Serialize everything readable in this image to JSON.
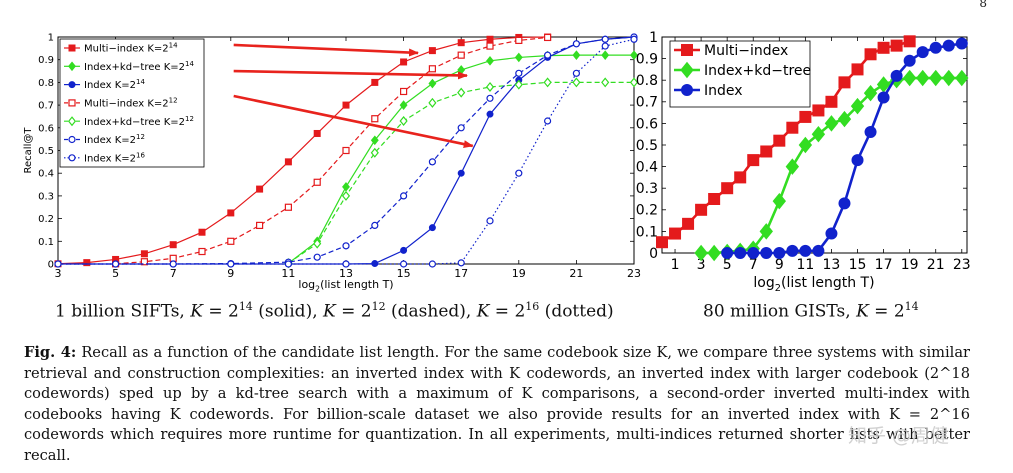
{
  "page_number": "8",
  "chart_data": [
    {
      "type": "line",
      "title": "",
      "xlabel": "log2(list length T)",
      "ylabel": "Recall@T",
      "xlim": [
        3,
        23
      ],
      "ylim": [
        0,
        1
      ],
      "xticks": [
        "3",
        "5",
        "7",
        "9",
        "11",
        "13",
        "15",
        "17",
        "19",
        "21",
        "23"
      ],
      "yticks": [
        "0",
        "0.1",
        "0.2",
        "0.3",
        "0.4",
        "0.5",
        "0.6",
        "0.7",
        "0.8",
        "0.9",
        "1"
      ],
      "legend_position": "top-left",
      "legend": [
        {
          "pre": "Multi−index K=2",
          "sup": "14"
        },
        {
          "pre": "Index+kd−tree K=2",
          "sup": "14"
        },
        {
          "pre": "Index K=2",
          "sup": "14"
        },
        {
          "pre": "Multi−index K=2",
          "sup": "12"
        },
        {
          "pre": "Index+kd−tree K=2",
          "sup": "12"
        },
        {
          "pre": "Index K=2",
          "sup": "12"
        },
        {
          "pre": "Index K=2",
          "sup": "16"
        }
      ],
      "series": [
        {
          "name": "Multi-index K=2^14",
          "color": "#e41a1c",
          "dash": "solid",
          "marker": "square",
          "filled": true,
          "x": [
            3,
            4,
            5,
            6,
            7,
            8,
            9,
            10,
            11,
            12,
            13,
            14,
            15,
            16,
            17,
            18,
            19,
            20
          ],
          "y": [
            0.001,
            0.006,
            0.02,
            0.045,
            0.085,
            0.14,
            0.225,
            0.33,
            0.45,
            0.575,
            0.7,
            0.8,
            0.89,
            0.94,
            0.975,
            0.99,
            0.998,
            1.0
          ]
        },
        {
          "name": "Index+kd-tree K=2^14",
          "color": "#33dd22",
          "dash": "solid",
          "marker": "diamond",
          "filled": true,
          "x": [
            11,
            12,
            13,
            14,
            15,
            16,
            17,
            18,
            19,
            20,
            21,
            22,
            23
          ],
          "y": [
            0.003,
            0.1,
            0.34,
            0.545,
            0.7,
            0.795,
            0.855,
            0.895,
            0.91,
            0.918,
            0.92,
            0.92,
            0.92
          ]
        },
        {
          "name": "Index K=2^14",
          "color": "#1122cc",
          "dash": "solid",
          "marker": "circle",
          "filled": true,
          "x": [
            3,
            5,
            7,
            9,
            11,
            13,
            14,
            15,
            16,
            17,
            18,
            19,
            20,
            21,
            22,
            23
          ],
          "y": [
            0,
            0,
            0,
            0,
            0,
            0,
            0.002,
            0.06,
            0.16,
            0.4,
            0.66,
            0.81,
            0.91,
            0.97,
            0.99,
            1.0
          ]
        },
        {
          "name": "Multi-index K=2^12",
          "color": "#e41a1c",
          "dash": "dashed",
          "marker": "square",
          "filled": false,
          "x": [
            5,
            6,
            7,
            8,
            9,
            10,
            11,
            12,
            13,
            14,
            15,
            16,
            17,
            18,
            19,
            20
          ],
          "y": [
            0.001,
            0.01,
            0.025,
            0.055,
            0.1,
            0.17,
            0.25,
            0.36,
            0.5,
            0.64,
            0.76,
            0.86,
            0.92,
            0.96,
            0.985,
            0.998
          ]
        },
        {
          "name": "Index+kd-tree K=2^12",
          "color": "#33dd22",
          "dash": "dashed",
          "marker": "diamond",
          "filled": false,
          "x": [
            11,
            12,
            13,
            14,
            15,
            16,
            17,
            18,
            19,
            20,
            21,
            22,
            23
          ],
          "y": [
            0.004,
            0.09,
            0.3,
            0.49,
            0.63,
            0.71,
            0.755,
            0.78,
            0.79,
            0.8,
            0.8,
            0.8,
            0.8
          ]
        },
        {
          "name": "Index K=2^12",
          "color": "#1122cc",
          "dash": "dashed",
          "marker": "circle",
          "filled": false,
          "x": [
            3,
            5,
            7,
            9,
            11,
            12,
            13,
            14,
            15,
            16,
            17,
            18,
            19,
            20,
            21,
            22,
            23
          ],
          "y": [
            0,
            0,
            0,
            0.002,
            0.008,
            0.03,
            0.08,
            0.17,
            0.3,
            0.45,
            0.6,
            0.73,
            0.84,
            0.92,
            0.97,
            0.99,
            1.0
          ]
        },
        {
          "name": "Index K=2^16",
          "color": "#1122cc",
          "dash": "dotted",
          "marker": "circle",
          "filled": false,
          "x": [
            3,
            5,
            7,
            9,
            11,
            13,
            15,
            16,
            17,
            18,
            19,
            20,
            21,
            22,
            23
          ],
          "y": [
            0,
            0,
            0,
            0,
            0,
            0,
            0,
            0,
            0.005,
            0.19,
            0.4,
            0.63,
            0.84,
            0.96,
            0.99
          ]
        }
      ],
      "annotations": [
        {
          "type": "arrow",
          "color": "#e8231d",
          "from": [
            9.1,
            0.965
          ],
          "to": [
            15.5,
            0.93
          ]
        },
        {
          "type": "arrow",
          "color": "#e8231d",
          "from": [
            9.1,
            0.85
          ],
          "to": [
            17.2,
            0.83
          ]
        },
        {
          "type": "arrow",
          "color": "#e8231d",
          "from": [
            9.1,
            0.74
          ],
          "to": [
            17.4,
            0.52
          ]
        }
      ]
    },
    {
      "type": "line",
      "title": "",
      "xlabel": "log2(list length T)",
      "ylabel": "",
      "xlim": [
        0,
        23.4
      ],
      "ylim": [
        0,
        1
      ],
      "xticks": [
        "1",
        "3",
        "5",
        "7",
        "9",
        "11",
        "13",
        "15",
        "17",
        "19",
        "21",
        "23"
      ],
      "yticks": [
        "0",
        "0.1",
        "0.2",
        "0.3",
        "0.4",
        "0.5",
        "0.6",
        "0.7",
        "0.8",
        "0.9",
        "1"
      ],
      "legend_position": "top-left",
      "legend": [
        {
          "pre": "Multi−index",
          "sup": ""
        },
        {
          "pre": "Index+kd−tree",
          "sup": ""
        },
        {
          "pre": "Index",
          "sup": ""
        }
      ],
      "series": [
        {
          "name": "Multi-index",
          "color": "#e41a1c",
          "marker": "square",
          "filled": true,
          "x": [
            0,
            1,
            2,
            3,
            4,
            5,
            6,
            7,
            8,
            9,
            10,
            11,
            12,
            13,
            14,
            15,
            16,
            17,
            18,
            19
          ],
          "y": [
            0.05,
            0.09,
            0.135,
            0.2,
            0.25,
            0.3,
            0.35,
            0.43,
            0.47,
            0.52,
            0.58,
            0.63,
            0.66,
            0.7,
            0.79,
            0.85,
            0.92,
            0.95,
            0.96,
            0.98
          ]
        },
        {
          "name": "Index+kd-tree",
          "color": "#33dd22",
          "marker": "diamond",
          "filled": true,
          "x": [
            3,
            4,
            5,
            6,
            7,
            8,
            9,
            10,
            11,
            12,
            13,
            14,
            15,
            16,
            17,
            18,
            19,
            20,
            21,
            22,
            23
          ],
          "y": [
            0.0,
            0.0,
            0.005,
            0.01,
            0.02,
            0.1,
            0.24,
            0.4,
            0.5,
            0.55,
            0.6,
            0.62,
            0.68,
            0.74,
            0.78,
            0.8,
            0.81,
            0.81,
            0.81,
            0.81,
            0.81
          ]
        },
        {
          "name": "Index",
          "color": "#1122cc",
          "marker": "circle",
          "filled": true,
          "x": [
            5,
            6,
            7,
            8,
            9,
            10,
            11,
            12,
            13,
            14,
            15,
            16,
            17,
            18,
            19,
            20,
            21,
            22,
            23
          ],
          "y": [
            0.0,
            0.0,
            0.0,
            0.0,
            0.0,
            0.01,
            0.01,
            0.01,
            0.09,
            0.23,
            0.43,
            0.56,
            0.72,
            0.82,
            0.89,
            0.93,
            0.95,
            0.96,
            0.97
          ]
        }
      ]
    }
  ],
  "subcaption_left": {
    "t1": "1 billion SIFTs, ",
    "t2": "K",
    "t3": " = 2",
    "e1": "14",
    "t4": " (solid), ",
    "t5": "K",
    "t6": " = 2",
    "e2": "12",
    "t7": " (dashed), ",
    "t8": "K",
    "t9": " = 2",
    "e3": "16",
    "t10": " (dotted)"
  },
  "subcaption_right": {
    "t1": "80 million GISTs, ",
    "t2": "K",
    "t3": " = 2",
    "e1": "14"
  },
  "caption": {
    "label": "Fig. 4:",
    "text": " Recall as a function of the candidate list length. For the same codebook size K, we compare three systems with similar retrieval and construction complexities: an inverted index with K codewords, an inverted index with larger codebook (2^18 codewords) sped up by a kd-tree search with a maximum of K comparisons, a second-order inverted multi-index with codebooks having K codewords. For billion-scale dataset we also provide results for an inverted index with K = 2^16 codewords which requires more runtime for quantization. In all experiments, multi-indices returned shorter lists with better recall."
  },
  "watermark": "知乎 @周健"
}
